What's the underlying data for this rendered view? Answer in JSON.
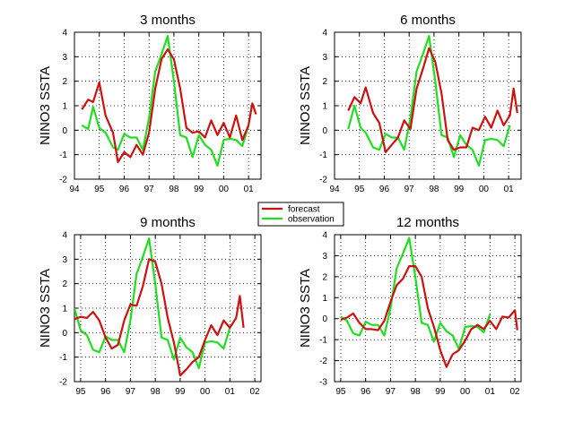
{
  "colors": {
    "forecast": "#cc1111",
    "observation": "#22dd22",
    "grid": "#000000",
    "axes": "#000000"
  },
  "legend": {
    "placement": "center",
    "entries": [
      "forecast",
      "observation"
    ]
  },
  "chart_data": [
    {
      "type": "line",
      "title": "3 months",
      "ylabel": "NINO3 SSTA",
      "xlabel": "",
      "xlim": [
        1994,
        2001.5
      ],
      "ylim": [
        -2,
        4
      ],
      "xticks": [
        1994,
        1995,
        1996,
        1997,
        1998,
        1999,
        2000,
        2001
      ],
      "xtick_labels": [
        "94",
        "95",
        "96",
        "97",
        "98",
        "99",
        "00",
        "01"
      ],
      "yticks": [
        -2,
        -1,
        0,
        1,
        2,
        3,
        4
      ],
      "grid": true,
      "series": [
        {
          "name": "forecast",
          "x": [
            1994.3,
            1994.55,
            1994.75,
            1995.0,
            1995.25,
            1995.55,
            1995.75,
            1996.0,
            1996.25,
            1996.5,
            1996.75,
            1997.0,
            1997.25,
            1997.5,
            1997.75,
            1998.0,
            1998.25,
            1998.5,
            1998.75,
            1999.0,
            1999.25,
            1999.5,
            1999.75,
            2000.0,
            2000.25,
            2000.5,
            2000.75,
            2001.0,
            2001.15,
            2001.3
          ],
          "y": [
            0.85,
            1.25,
            1.15,
            1.95,
            0.6,
            -0.1,
            -1.3,
            -0.9,
            -1.1,
            -0.6,
            -1.0,
            -0.1,
            1.7,
            2.9,
            3.3,
            2.9,
            1.7,
            0.1,
            -0.1,
            -0.05,
            -0.3,
            0.4,
            -0.2,
            0.3,
            -0.3,
            0.6,
            -0.4,
            0.2,
            1.1,
            0.65
          ]
        },
        {
          "name": "observation",
          "x": [
            1994.3,
            1994.55,
            1994.75,
            1995.0,
            1995.25,
            1995.55,
            1995.75,
            1996.0,
            1996.25,
            1996.5,
            1996.75,
            1997.0,
            1997.25,
            1997.5,
            1997.75,
            1998.0,
            1998.25,
            1998.5,
            1998.75,
            1999.0,
            1999.25,
            1999.5,
            1999.75,
            2000.0,
            2000.25,
            2000.5,
            2000.75,
            2001.0
          ],
          "y": [
            0.2,
            0.05,
            0.95,
            0.1,
            -0.1,
            -0.7,
            -0.8,
            -0.15,
            -0.3,
            -0.3,
            -0.8,
            0.5,
            2.4,
            3.1,
            3.85,
            2.0,
            -0.2,
            -0.3,
            -1.1,
            -0.2,
            -0.6,
            -0.8,
            -1.45,
            -0.4,
            -0.35,
            -0.4,
            -0.65,
            0.2
          ]
        }
      ]
    },
    {
      "type": "line",
      "title": "6 months",
      "ylabel": "NINO3 SSTA",
      "xlabel": "",
      "xlim": [
        1994,
        2001.5
      ],
      "ylim": [
        -2,
        4
      ],
      "xticks": [
        1994,
        1995,
        1996,
        1997,
        1998,
        1999,
        2000,
        2001
      ],
      "xtick_labels": [
        "94",
        "95",
        "96",
        "97",
        "98",
        "99",
        "00",
        "01"
      ],
      "yticks": [
        -2,
        -1,
        0,
        1,
        2,
        3,
        4
      ],
      "grid": true,
      "series": [
        {
          "name": "forecast",
          "x": [
            1994.55,
            1994.8,
            1995.05,
            1995.25,
            1995.55,
            1995.8,
            1996.05,
            1996.3,
            1996.55,
            1996.8,
            1997.05,
            1997.3,
            1997.55,
            1997.8,
            1998.05,
            1998.3,
            1998.55,
            1998.8,
            1999.05,
            1999.3,
            1999.55,
            1999.8,
            2000.05,
            2000.3,
            2000.55,
            2000.8,
            2001.05,
            2001.2,
            2001.35
          ],
          "y": [
            0.8,
            1.35,
            1.1,
            1.75,
            0.7,
            0.3,
            -0.9,
            -0.6,
            -0.3,
            0.4,
            0.05,
            1.7,
            2.5,
            3.35,
            2.8,
            1.5,
            -0.4,
            -0.8,
            -0.7,
            -0.7,
            0.1,
            0.0,
            0.55,
            0.1,
            0.8,
            0.2,
            0.6,
            1.7,
            0.7
          ]
        },
        {
          "name": "observation",
          "x": [
            1994.55,
            1994.8,
            1995.05,
            1995.25,
            1995.55,
            1995.8,
            1996.05,
            1996.3,
            1996.55,
            1996.8,
            1997.05,
            1997.3,
            1997.55,
            1997.8,
            1998.05,
            1998.3,
            1998.55,
            1998.8,
            1999.05,
            1999.3,
            1999.55,
            1999.8,
            2000.05,
            2000.3,
            2000.55,
            2000.8,
            2001.05
          ],
          "y": [
            0.05,
            1.0,
            0.1,
            -0.1,
            -0.7,
            -0.8,
            -0.15,
            -0.3,
            -0.3,
            -0.8,
            0.5,
            2.4,
            3.1,
            3.85,
            2.0,
            -0.2,
            -0.3,
            -1.1,
            -0.2,
            -0.6,
            -0.8,
            -1.45,
            -0.4,
            -0.35,
            -0.4,
            -0.65,
            0.2
          ]
        }
      ]
    },
    {
      "type": "line",
      "title": "9 months",
      "ylabel": "NINO3 SSTA",
      "xlabel": "",
      "xlim": [
        1994.75,
        2002.25
      ],
      "ylim": [
        -2,
        4
      ],
      "xticks": [
        1995,
        1996,
        1997,
        1998,
        1999,
        2000,
        2001,
        2002
      ],
      "xtick_labels": [
        "95",
        "96",
        "97",
        "98",
        "99",
        "00",
        "01",
        "02"
      ],
      "yticks": [
        -2,
        -1,
        0,
        1,
        2,
        3,
        4
      ],
      "grid": true,
      "series": [
        {
          "name": "forecast",
          "x": [
            1994.75,
            1995.0,
            1995.25,
            1995.5,
            1995.75,
            1996.0,
            1996.25,
            1996.5,
            1996.75,
            1997.0,
            1997.25,
            1997.5,
            1997.75,
            1998.0,
            1998.25,
            1998.5,
            1998.75,
            1999.0,
            1999.25,
            1999.5,
            1999.75,
            2000.0,
            2000.25,
            2000.5,
            2000.75,
            2001.0,
            2001.25,
            2001.4,
            2001.55
          ],
          "y": [
            0.55,
            0.65,
            0.6,
            0.85,
            0.5,
            -0.2,
            -0.65,
            -0.5,
            0.5,
            1.15,
            1.1,
            1.9,
            3.0,
            2.9,
            2.0,
            0.6,
            -0.4,
            -1.75,
            -1.5,
            -1.2,
            -1.0,
            -0.3,
            0.3,
            -0.1,
            0.5,
            0.2,
            0.6,
            1.5,
            0.2
          ]
        },
        {
          "name": "observation",
          "x": [
            1994.75,
            1995.0,
            1995.25,
            1995.5,
            1995.75,
            1996.0,
            1996.25,
            1996.5,
            1996.75,
            1997.0,
            1997.25,
            1997.5,
            1997.75,
            1998.0,
            1998.25,
            1998.5,
            1998.75,
            1999.0,
            1999.25,
            1999.5,
            1999.75,
            2000.0,
            2000.25,
            2000.5,
            2000.75,
            2001.0
          ],
          "y": [
            1.0,
            0.1,
            -0.1,
            -0.7,
            -0.8,
            -0.15,
            -0.3,
            -0.3,
            -0.8,
            0.5,
            2.4,
            3.1,
            3.85,
            2.0,
            -0.2,
            -0.3,
            -1.1,
            -0.2,
            -0.6,
            -0.8,
            -1.45,
            -0.4,
            -0.35,
            -0.4,
            -0.65,
            0.2
          ]
        }
      ]
    },
    {
      "type": "line",
      "title": "12 months",
      "ylabel": "NINO3 SSTA",
      "xlabel": "",
      "xlim": [
        1994.75,
        2002.25
      ],
      "ylim": [
        -3,
        4
      ],
      "xticks": [
        1995,
        1996,
        1997,
        1998,
        1999,
        2000,
        2001,
        2002
      ],
      "xtick_labels": [
        "95",
        "96",
        "97",
        "98",
        "99",
        "00",
        "01",
        "02"
      ],
      "yticks": [
        -3,
        -2,
        -1,
        0,
        1,
        2,
        3,
        4
      ],
      "grid": true,
      "series": [
        {
          "name": "forecast",
          "x": [
            1995.0,
            1995.25,
            1995.5,
            1995.75,
            1996.0,
            1996.25,
            1996.5,
            1996.75,
            1997.0,
            1997.25,
            1997.5,
            1997.75,
            1998.0,
            1998.25,
            1998.5,
            1998.75,
            1999.0,
            1999.25,
            1999.5,
            1999.75,
            2000.0,
            2000.25,
            2000.5,
            2000.75,
            2001.0,
            2001.25,
            2001.5,
            2001.75,
            2002.0,
            2002.1
          ],
          "y": [
            -0.05,
            0.05,
            0.25,
            -0.2,
            -0.5,
            -0.5,
            -0.55,
            -0.1,
            0.8,
            1.6,
            1.9,
            2.5,
            2.5,
            2.0,
            0.5,
            -0.4,
            -1.5,
            -2.3,
            -1.7,
            -1.5,
            -1.05,
            -0.5,
            -0.3,
            -0.5,
            -0.1,
            -0.5,
            0.1,
            0.05,
            0.4,
            -0.55
          ]
        },
        {
          "name": "observation",
          "x": [
            1995.0,
            1995.25,
            1995.5,
            1995.75,
            1996.0,
            1996.25,
            1996.5,
            1996.75,
            1997.0,
            1997.25,
            1997.5,
            1997.75,
            1998.0,
            1998.25,
            1998.5,
            1998.75,
            1999.0,
            1999.25,
            1999.5,
            1999.75,
            2000.0,
            2000.25,
            2000.5,
            2000.75,
            2001.0
          ],
          "y": [
            0.1,
            -0.1,
            -0.7,
            -0.8,
            -0.15,
            -0.3,
            -0.3,
            -0.8,
            0.5,
            2.4,
            3.1,
            3.85,
            2.0,
            -0.2,
            -0.3,
            -1.1,
            -0.2,
            -0.6,
            -0.8,
            -1.45,
            -0.4,
            -0.35,
            -0.4,
            -0.65,
            0.2
          ]
        }
      ]
    }
  ]
}
